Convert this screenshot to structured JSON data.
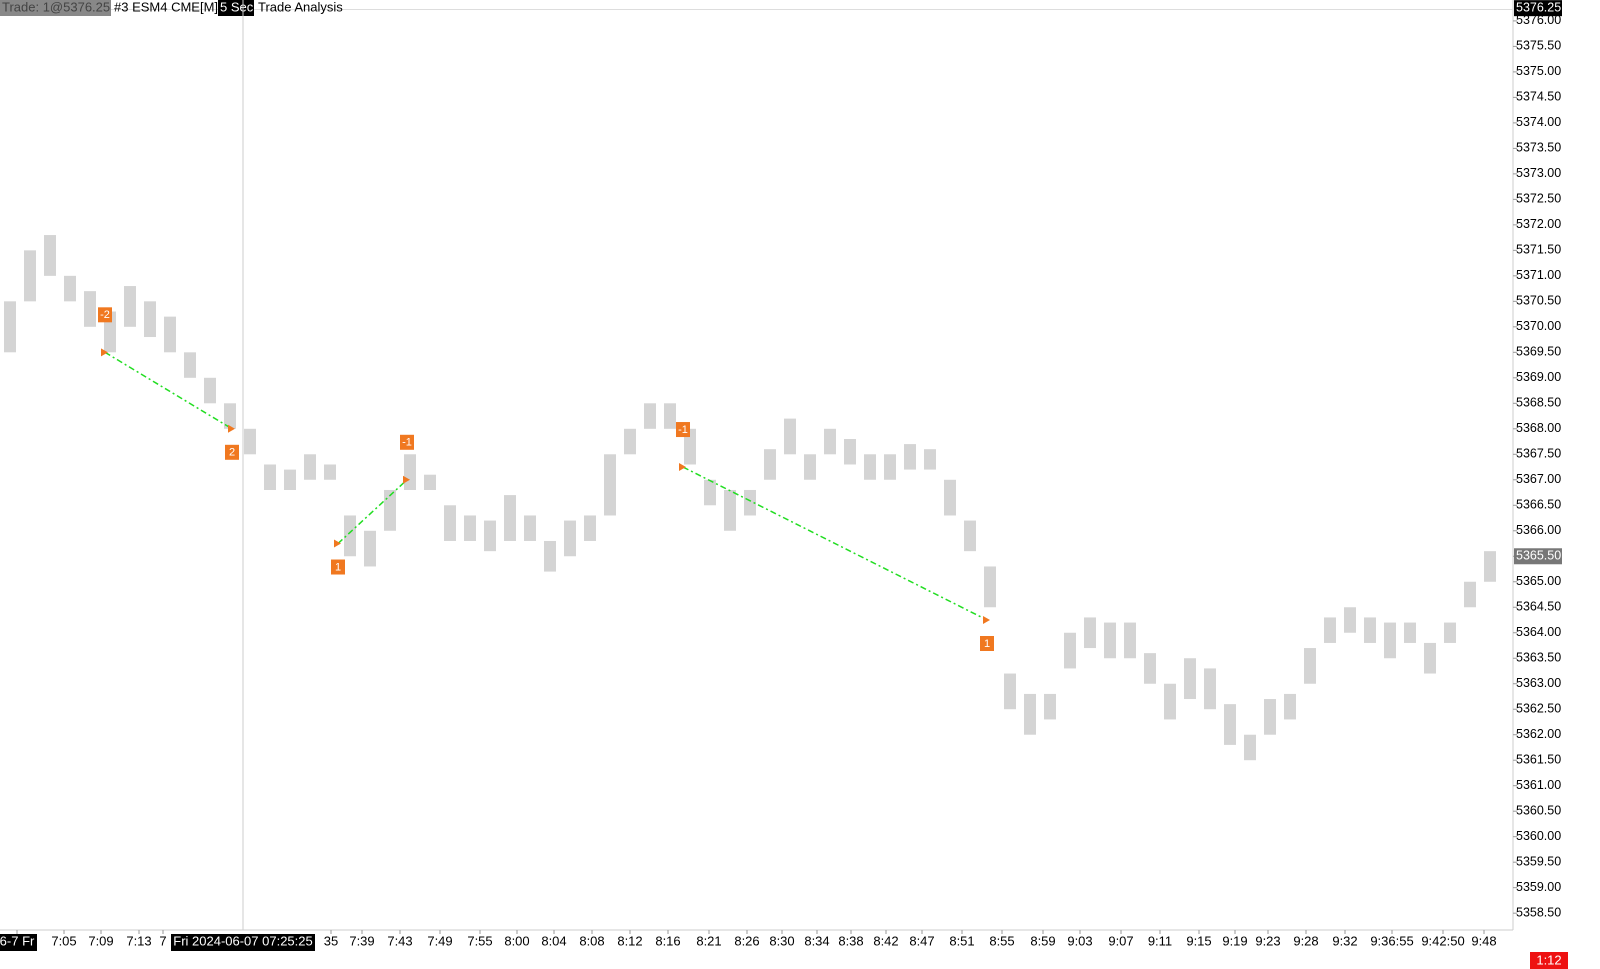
{
  "chart_data": {
    "type": "range-bar",
    "header": {
      "trade": "Trade: 1@5376.25",
      "symbol": "#3 ESM4 CME[M]",
      "interval": "5 Sec",
      "study": "Trade Analysis"
    },
    "color": "#b0b0b0",
    "highs": [
      5370.5,
      5371.5,
      5371.8,
      5371,
      5370.7,
      5370.3,
      5370.8,
      5370.5,
      5370.2,
      5369.5,
      5369,
      5368.5,
      5368,
      5367.3,
      5367.2,
      5367.5,
      5367.3,
      5366.3,
      5366,
      5366.8,
      5367.5,
      5367.1,
      5366.5,
      5366.3,
      5366.2,
      5366.7,
      5366.3,
      5365.8,
      5366.2,
      5366.3,
      5367.5,
      5368,
      5368.5,
      5368.5,
      5368,
      5367,
      5366.8,
      5366.8,
      5367.6,
      5368.2,
      5367.5,
      5368,
      5367.8,
      5367.5,
      5367.5,
      5367.7,
      5367.6,
      5367,
      5366.2,
      5365.3,
      5363.2,
      5362.8,
      5362.8,
      5364,
      5364.3,
      5364.2,
      5364.2,
      5363.6,
      5363,
      5363.5,
      5363.3,
      5362.6,
      5362,
      5362.7,
      5362.8,
      5363.7,
      5364.3,
      5364.5,
      5364.3,
      5364.2,
      5364.2,
      5363.8,
      5364.2,
      5365,
      5365.6
    ],
    "lows": [
      5369.5,
      5370.5,
      5371,
      5370.5,
      5370,
      5369.5,
      5370,
      5369.8,
      5369.5,
      5369,
      5368.5,
      5368,
      5367.5,
      5366.8,
      5366.8,
      5367,
      5367,
      5365.5,
      5365.3,
      5366,
      5366.8,
      5366.8,
      5365.8,
      5365.8,
      5365.6,
      5365.8,
      5365.8,
      5365.2,
      5365.5,
      5365.8,
      5366.3,
      5367.5,
      5368,
      5368,
      5367.3,
      5366.5,
      5366,
      5366.3,
      5367,
      5367.5,
      5367,
      5367.5,
      5367.3,
      5367,
      5367,
      5367.2,
      5367.2,
      5366.3,
      5365.6,
      5364.5,
      5362.5,
      5362,
      5362.3,
      5363.3,
      5363.7,
      5363.5,
      5363.5,
      5363,
      5362.3,
      5362.7,
      5362.5,
      5361.8,
      5361.5,
      5362,
      5362.3,
      5363,
      5363.8,
      5364,
      5363.8,
      5363.5,
      5363.8,
      5363.2,
      5363.8,
      5364.5,
      5365
    ],
    "trades": [
      {
        "entry_bar": 5.25,
        "entry_price": 5369.5,
        "entry_qty": -2,
        "exit_bar": 11.6,
        "exit_price": 5368.0,
        "exit_qty": 2
      },
      {
        "entry_bar": 16.9,
        "entry_price": 5365.75,
        "entry_qty": 1,
        "exit_bar": 20.35,
        "exit_price": 5367.0,
        "exit_qty": -1
      },
      {
        "entry_bar": 34.15,
        "entry_price": 5367.25,
        "entry_qty": -1,
        "exit_bar": 49.35,
        "exit_price": 5364.25,
        "exit_qty": 1
      }
    ],
    "trade_line_color": "#22dd22",
    "marker_color": "#f07820",
    "xlim": [
      0,
      75.6
    ],
    "ylim": [
      5358.17,
      5376.41
    ],
    "xticks": [
      {
        "value": 0.85,
        "label": "6-7 Fr"
      },
      {
        "value": 3.2,
        "label": "7:05"
      },
      {
        "value": 5.05,
        "label": "7:09"
      },
      {
        "value": 6.95,
        "label": "7:13"
      },
      {
        "value": 8.15,
        "label": "7"
      },
      {
        "value": 16.55,
        "label": "35"
      },
      {
        "value": 18.1,
        "label": "7:39"
      },
      {
        "value": 20,
        "label": "7:43"
      },
      {
        "value": 22,
        "label": "7:49"
      },
      {
        "value": 24,
        "label": "7:55"
      },
      {
        "value": 25.85,
        "label": "8:00"
      },
      {
        "value": 27.7,
        "label": "8:04"
      },
      {
        "value": 29.6,
        "label": "8:08"
      },
      {
        "value": 31.5,
        "label": "8:12"
      },
      {
        "value": 33.4,
        "label": "8:16"
      },
      {
        "value": 35.45,
        "label": "8:21"
      },
      {
        "value": 37.35,
        "label": "8:26"
      },
      {
        "value": 39.1,
        "label": "8:30"
      },
      {
        "value": 40.85,
        "label": "8:34"
      },
      {
        "value": 42.55,
        "label": "8:38"
      },
      {
        "value": 44.3,
        "label": "8:42"
      },
      {
        "value": 46.1,
        "label": "8:47"
      },
      {
        "value": 48.1,
        "label": "8:51"
      },
      {
        "value": 50.1,
        "label": "8:55"
      },
      {
        "value": 52.15,
        "label": "8:59"
      },
      {
        "value": 54,
        "label": "9:03"
      },
      {
        "value": 56.05,
        "label": "9:07"
      },
      {
        "value": 58,
        "label": "9:11"
      },
      {
        "value": 59.95,
        "label": "9:15"
      },
      {
        "value": 61.75,
        "label": "9:19"
      },
      {
        "value": 63.4,
        "label": "9:23"
      },
      {
        "value": 65.3,
        "label": "9:28"
      },
      {
        "value": 67.25,
        "label": "9:32"
      },
      {
        "value": 69.6,
        "label": "9:36:55"
      },
      {
        "value": 72.15,
        "label": "9:42:50"
      },
      {
        "value": 74.2,
        "label": "9:48"
      }
    ],
    "yticks": [
      {
        "value": 5358.5,
        "label": "5358.50"
      },
      {
        "value": 5359,
        "label": "5359.00"
      },
      {
        "value": 5359.5,
        "label": "5359.50"
      },
      {
        "value": 5360,
        "label": "5360.00"
      },
      {
        "value": 5360.5,
        "label": "5360.50"
      },
      {
        "value": 5361,
        "label": "5361.00"
      },
      {
        "value": 5361.5,
        "label": "5361.50"
      },
      {
        "value": 5362,
        "label": "5362.00"
      },
      {
        "value": 5362.5,
        "label": "5362.50"
      },
      {
        "value": 5363,
        "label": "5363.00"
      },
      {
        "value": 5363.5,
        "label": "5363.50"
      },
      {
        "value": 5364,
        "label": "5364.00"
      },
      {
        "value": 5364.5,
        "label": "5364.50"
      },
      {
        "value": 5365,
        "label": "5365.00"
      },
      {
        "value": 5365.5,
        "label": "5365.50"
      },
      {
        "value": 5366,
        "label": "5366.00"
      },
      {
        "value": 5366.5,
        "label": "5366.50"
      },
      {
        "value": 5367,
        "label": "5367.00"
      },
      {
        "value": 5367.5,
        "label": "5367.50"
      },
      {
        "value": 5368,
        "label": "5368.00"
      },
      {
        "value": 5368.5,
        "label": "5368.50"
      },
      {
        "value": 5369,
        "label": "5369.00"
      },
      {
        "value": 5369.5,
        "label": "5369.50"
      },
      {
        "value": 5370,
        "label": "5370.00"
      },
      {
        "value": 5370.5,
        "label": "5370.50"
      },
      {
        "value": 5371,
        "label": "5371.00"
      },
      {
        "value": 5371.5,
        "label": "5371.50"
      },
      {
        "value": 5372,
        "label": "5372.00"
      },
      {
        "value": 5372.5,
        "label": "5372.50"
      },
      {
        "value": 5373,
        "label": "5373.00"
      },
      {
        "value": 5373.5,
        "label": "5373.50"
      },
      {
        "value": 5374,
        "label": "5374.00"
      },
      {
        "value": 5374.5,
        "label": "5374.50"
      },
      {
        "value": 5375,
        "label": "5375.00"
      },
      {
        "value": 5375.5,
        "label": "5375.50"
      },
      {
        "value": 5376,
        "label": "5376.00"
      }
    ],
    "cursor": {
      "value": 12.15,
      "label": "Fri 2024-06-07  07:25:25"
    },
    "crosshair_price": {
      "value": 5376.25,
      "label": "5376.25"
    },
    "last_price": {
      "value": 5365.5,
      "label": "5365.50"
    },
    "bar_timer": "1:12"
  }
}
